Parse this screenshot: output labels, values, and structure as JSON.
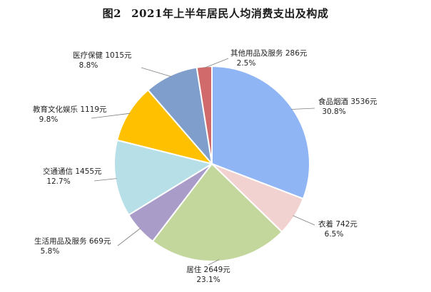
{
  "figure": {
    "number": "图2",
    "title": "2021年上半年居民人均消费支出及构成"
  },
  "chart_data": {
    "type": "pie",
    "title": "2021年上半年居民人均消费支出及构成",
    "unit": "元",
    "start_angle_deg": 0,
    "direction": "clockwise",
    "legend": "none",
    "slices": [
      {
        "name": "食品烟酒",
        "value": 3536,
        "value_text": "3536元",
        "percent_text": "30.8%",
        "color": "#8fb5f5"
      },
      {
        "name": "衣着",
        "value": 742,
        "value_text": "742元",
        "percent_text": "6.5%",
        "color": "#f2d2d0"
      },
      {
        "name": "居住",
        "value": 2649,
        "value_text": "2649元",
        "percent_text": "23.1%",
        "color": "#c3d69b"
      },
      {
        "name": "生活用品及服务",
        "value": 669,
        "value_text": "669元",
        "percent_text": "5.8%",
        "color": "#a99cc8"
      },
      {
        "name": "交通通信",
        "value": 1455,
        "value_text": "1455元",
        "percent_text": "12.7%",
        "color": "#b7dfe8"
      },
      {
        "name": "教育文化娱乐",
        "value": 1119,
        "value_text": "1119元",
        "percent_text": "9.8%",
        "color": "#ffc000"
      },
      {
        "name": "医疗保健",
        "value": 1015,
        "value_text": "1015元",
        "percent_text": "8.8%",
        "color": "#7f9ecb"
      },
      {
        "name": "其他用品及服务",
        "value": 286,
        "value_text": "286元",
        "percent_text": "2.5%",
        "color": "#d16b6b"
      }
    ]
  }
}
